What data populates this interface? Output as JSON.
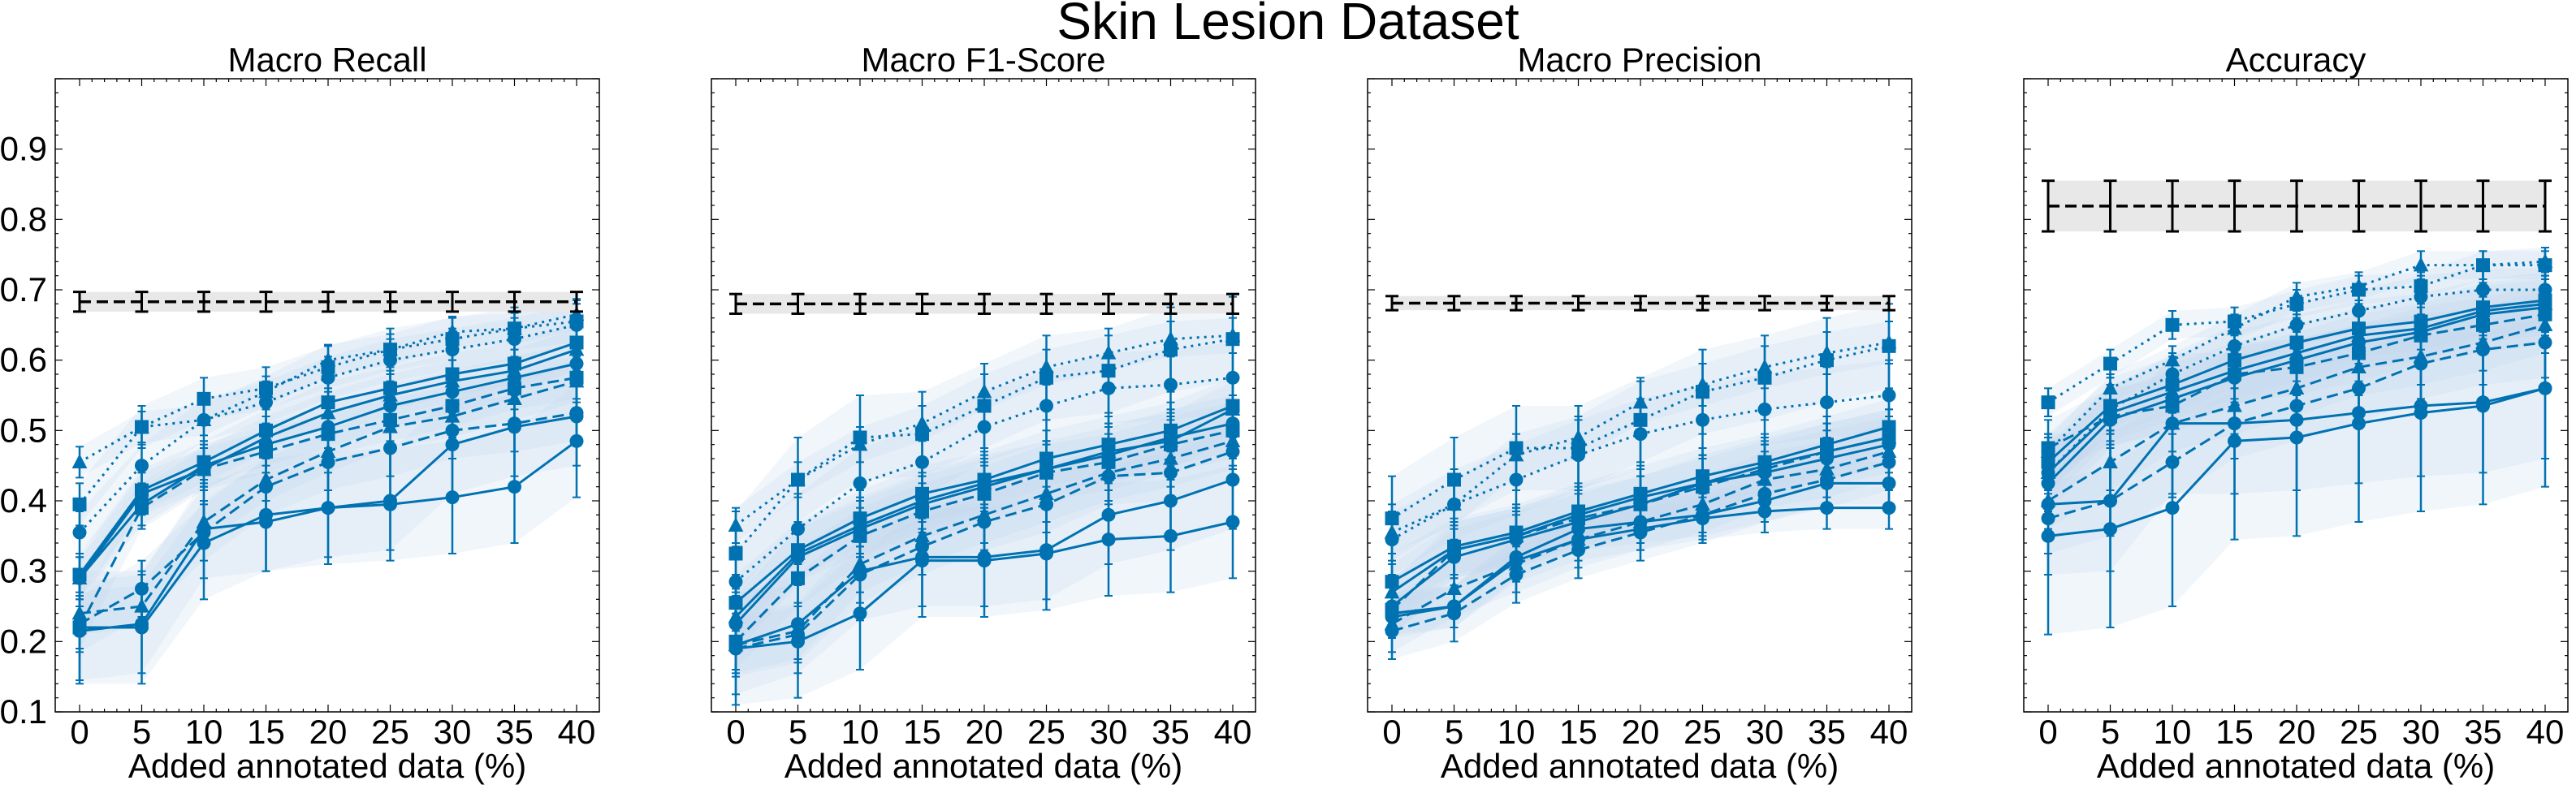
{
  "figure": {
    "title": "Skin Lesion Dataset"
  },
  "colors": {
    "series": "#0072b2",
    "reference": "#000000",
    "band": "#bdd7ee",
    "ref_band": "#e8e8e8"
  },
  "chart_data": [
    {
      "type": "line",
      "title": "Macro Recall",
      "xlabel": "Added annotated data (%)",
      "ylabel": "",
      "x": [
        0,
        5,
        10,
        15,
        20,
        25,
        30,
        35,
        40
      ],
      "ylim": [
        0.1,
        1.0
      ],
      "yticks": [
        "0.1",
        "0.2",
        "0.3",
        "0.4",
        "0.5",
        "0.6",
        "0.7",
        "0.8",
        "0.9"
      ],
      "reference": {
        "values": [
          0.683,
          0.683,
          0.683,
          0.683,
          0.683,
          0.683,
          0.683,
          0.683,
          0.683
        ],
        "err": 0.014,
        "style": "dashed"
      },
      "series": [
        {
          "style": "dotted",
          "marker": "triangle",
          "values": [
            0.455,
            0.505,
            0.515,
            0.555,
            0.6,
            0.615,
            0.64,
            0.645,
            0.665
          ],
          "err": 0.022
        },
        {
          "style": "dotted",
          "marker": "square",
          "values": [
            0.395,
            0.505,
            0.545,
            0.56,
            0.59,
            0.615,
            0.63,
            0.645,
            0.655
          ],
          "err": 0.03
        },
        {
          "style": "dotted",
          "marker": "circle",
          "values": [
            0.355,
            0.45,
            0.515,
            0.54,
            0.575,
            0.6,
            0.615,
            0.63,
            0.65
          ],
          "err": 0.03
        },
        {
          "style": "solid",
          "marker": "square",
          "values": [
            0.295,
            0.415,
            0.455,
            0.5,
            0.54,
            0.56,
            0.58,
            0.595,
            0.625
          ],
          "err": 0.03
        },
        {
          "style": "solid",
          "marker": "triangle",
          "values": [
            0.29,
            0.41,
            0.445,
            0.49,
            0.525,
            0.55,
            0.57,
            0.585,
            0.615
          ],
          "err": 0.03
        },
        {
          "style": "solid",
          "marker": "circle",
          "values": [
            0.29,
            0.395,
            0.45,
            0.48,
            0.505,
            0.535,
            0.555,
            0.575,
            0.595
          ],
          "err": 0.03
        },
        {
          "style": "dashed",
          "marker": "square",
          "values": [
            0.22,
            0.39,
            0.445,
            0.47,
            0.495,
            0.515,
            0.535,
            0.56,
            0.575
          ],
          "err": 0.03
        },
        {
          "style": "dashed",
          "marker": "triangle",
          "values": [
            0.24,
            0.25,
            0.37,
            0.43,
            0.47,
            0.505,
            0.52,
            0.545,
            0.57
          ],
          "err": 0.03
        },
        {
          "style": "dashed",
          "marker": "circle",
          "values": [
            0.225,
            0.275,
            0.355,
            0.42,
            0.455,
            0.475,
            0.5,
            0.51,
            0.525
          ],
          "err": 0.04
        },
        {
          "style": "solid",
          "marker": "circle",
          "values": [
            0.215,
            0.225,
            0.36,
            0.37,
            0.39,
            0.4,
            0.48,
            0.505,
            0.52
          ],
          "err": 0.07
        },
        {
          "style": "solid",
          "marker": "circle",
          "values": [
            0.22,
            0.22,
            0.34,
            0.38,
            0.39,
            0.395,
            0.405,
            0.42,
            0.485
          ],
          "err": 0.08
        }
      ]
    },
    {
      "type": "line",
      "title": "Macro F1-Score",
      "xlabel": "Added annotated data (%)",
      "ylabel": "",
      "x": [
        0,
        5,
        10,
        15,
        20,
        25,
        30,
        35,
        40
      ],
      "ylim": [
        0.1,
        1.0
      ],
      "yticks": [],
      "reference": {
        "values": [
          0.68,
          0.68,
          0.68,
          0.68,
          0.68,
          0.68,
          0.68,
          0.68,
          0.68
        ],
        "err": 0.014,
        "style": "dashed"
      },
      "series": [
        {
          "style": "dotted",
          "marker": "triangle",
          "values": [
            0.365,
            0.43,
            0.48,
            0.51,
            0.555,
            0.59,
            0.61,
            0.63,
            0.635
          ],
          "err": 0.025
        },
        {
          "style": "dotted",
          "marker": "square",
          "values": [
            0.325,
            0.43,
            0.49,
            0.495,
            0.535,
            0.575,
            0.585,
            0.615,
            0.63
          ],
          "err": 0.06
        },
        {
          "style": "dotted",
          "marker": "circle",
          "values": [
            0.285,
            0.36,
            0.425,
            0.455,
            0.505,
            0.535,
            0.56,
            0.565,
            0.575
          ],
          "err": 0.05
        },
        {
          "style": "solid",
          "marker": "square",
          "values": [
            0.255,
            0.33,
            0.375,
            0.41,
            0.43,
            0.46,
            0.48,
            0.5,
            0.535
          ],
          "err": 0.04
        },
        {
          "style": "solid",
          "marker": "triangle",
          "values": [
            0.235,
            0.325,
            0.365,
            0.4,
            0.425,
            0.445,
            0.47,
            0.485,
            0.53
          ],
          "err": 0.04
        },
        {
          "style": "solid",
          "marker": "circle",
          "values": [
            0.225,
            0.32,
            0.36,
            0.395,
            0.42,
            0.445,
            0.465,
            0.49,
            0.51
          ],
          "err": 0.04
        },
        {
          "style": "dashed",
          "marker": "square",
          "values": [
            0.2,
            0.29,
            0.35,
            0.385,
            0.41,
            0.44,
            0.455,
            0.48,
            0.5
          ],
          "err": 0.04
        },
        {
          "style": "dashed",
          "marker": "triangle",
          "values": [
            0.195,
            0.215,
            0.31,
            0.35,
            0.38,
            0.41,
            0.44,
            0.46,
            0.485
          ],
          "err": 0.04
        },
        {
          "style": "dashed",
          "marker": "circle",
          "values": [
            0.19,
            0.21,
            0.295,
            0.335,
            0.37,
            0.395,
            0.435,
            0.44,
            0.47
          ],
          "err": 0.04
        },
        {
          "style": "solid",
          "marker": "circle",
          "values": [
            0.195,
            0.225,
            0.3,
            0.32,
            0.32,
            0.33,
            0.38,
            0.4,
            0.43
          ],
          "err": 0.07
        },
        {
          "style": "solid",
          "marker": "circle",
          "values": [
            0.19,
            0.2,
            0.24,
            0.315,
            0.315,
            0.325,
            0.345,
            0.35,
            0.37
          ],
          "err": 0.08
        }
      ]
    },
    {
      "type": "line",
      "title": "Macro Precision",
      "xlabel": "Added annotated data (%)",
      "ylabel": "",
      "x": [
        0,
        5,
        10,
        15,
        20,
        25,
        30,
        35,
        40
      ],
      "ylim": [
        0.1,
        1.0
      ],
      "yticks": [],
      "reference": {
        "values": [
          0.681,
          0.681,
          0.681,
          0.681,
          0.681,
          0.681,
          0.681,
          0.681,
          0.681
        ],
        "err": 0.01,
        "style": "dashed"
      },
      "series": [
        {
          "style": "dotted",
          "marker": "triangle",
          "values": [
            0.355,
            0.395,
            0.465,
            0.49,
            0.54,
            0.565,
            0.59,
            0.61,
            0.625
          ],
          "err": 0.03
        },
        {
          "style": "dotted",
          "marker": "square",
          "values": [
            0.375,
            0.43,
            0.475,
            0.475,
            0.515,
            0.555,
            0.575,
            0.6,
            0.62
          ],
          "err": 0.06
        },
        {
          "style": "dotted",
          "marker": "circle",
          "values": [
            0.345,
            0.395,
            0.43,
            0.465,
            0.495,
            0.515,
            0.53,
            0.54,
            0.55
          ],
          "err": 0.05
        },
        {
          "style": "solid",
          "marker": "square",
          "values": [
            0.285,
            0.335,
            0.355,
            0.385,
            0.41,
            0.435,
            0.455,
            0.48,
            0.505
          ],
          "err": 0.04
        },
        {
          "style": "solid",
          "marker": "triangle",
          "values": [
            0.27,
            0.33,
            0.35,
            0.38,
            0.405,
            0.425,
            0.45,
            0.47,
            0.49
          ],
          "err": 0.04
        },
        {
          "style": "solid",
          "marker": "circle",
          "values": [
            0.25,
            0.32,
            0.345,
            0.37,
            0.395,
            0.425,
            0.44,
            0.46,
            0.48
          ],
          "err": 0.04
        },
        {
          "style": "dashed",
          "marker": "square",
          "values": [
            0.245,
            0.33,
            0.35,
            0.375,
            0.395,
            0.42,
            0.445,
            0.47,
            0.49
          ],
          "err": 0.04
        },
        {
          "style": "dashed",
          "marker": "triangle",
          "values": [
            0.225,
            0.275,
            0.31,
            0.345,
            0.37,
            0.395,
            0.43,
            0.445,
            0.47
          ],
          "err": 0.04
        },
        {
          "style": "dashed",
          "marker": "circle",
          "values": [
            0.215,
            0.24,
            0.295,
            0.33,
            0.355,
            0.38,
            0.41,
            0.43,
            0.455
          ],
          "err": 0.04
        },
        {
          "style": "solid",
          "marker": "circle",
          "values": [
            0.24,
            0.25,
            0.32,
            0.36,
            0.37,
            0.38,
            0.4,
            0.425,
            0.425
          ],
          "err": 0.03
        },
        {
          "style": "solid",
          "marker": "circle",
          "values": [
            0.235,
            0.25,
            0.315,
            0.345,
            0.36,
            0.375,
            0.385,
            0.39,
            0.39
          ],
          "err": 0.03
        }
      ]
    },
    {
      "type": "line",
      "title": "Accuracy",
      "xlabel": "Added annotated data (%)",
      "ylabel": "",
      "x": [
        0,
        5,
        10,
        15,
        20,
        25,
        30,
        35,
        40
      ],
      "ylim": [
        0.1,
        1.0
      ],
      "yticks": [],
      "reference": {
        "values": [
          0.819,
          0.819,
          0.819,
          0.819,
          0.819,
          0.819,
          0.819,
          0.819,
          0.819
        ],
        "err": 0.036,
        "style": "dashed"
      },
      "series": [
        {
          "style": "dotted",
          "marker": "square",
          "values": [
            0.54,
            0.595,
            0.65,
            0.655,
            0.68,
            0.7,
            0.705,
            0.735,
            0.735
          ],
          "err": 0.02
        },
        {
          "style": "dotted",
          "marker": "triangle",
          "values": [
            0.47,
            0.56,
            0.6,
            0.645,
            0.69,
            0.705,
            0.735,
            0.735,
            0.74
          ],
          "err": 0.02
        },
        {
          "style": "dotted",
          "marker": "circle",
          "values": [
            0.44,
            0.53,
            0.58,
            0.62,
            0.65,
            0.67,
            0.69,
            0.7,
            0.7
          ],
          "err": 0.03
        },
        {
          "style": "solid",
          "marker": "square",
          "values": [
            0.455,
            0.535,
            0.565,
            0.6,
            0.625,
            0.645,
            0.655,
            0.675,
            0.685
          ],
          "err": 0.04
        },
        {
          "style": "solid",
          "marker": "triangle",
          "values": [
            0.44,
            0.525,
            0.555,
            0.585,
            0.61,
            0.635,
            0.645,
            0.67,
            0.68
          ],
          "err": 0.04
        },
        {
          "style": "solid",
          "marker": "circle",
          "values": [
            0.425,
            0.515,
            0.545,
            0.575,
            0.6,
            0.625,
            0.64,
            0.665,
            0.675
          ],
          "err": 0.04
        },
        {
          "style": "dashed",
          "marker": "square",
          "values": [
            0.475,
            0.52,
            0.535,
            0.58,
            0.59,
            0.61,
            0.635,
            0.65,
            0.665
          ],
          "err": 0.04
        },
        {
          "style": "dashed",
          "marker": "triangle",
          "values": [
            0.4,
            0.455,
            0.51,
            0.535,
            0.56,
            0.59,
            0.605,
            0.625,
            0.65
          ],
          "err": 0.04
        },
        {
          "style": "dashed",
          "marker": "circle",
          "values": [
            0.375,
            0.4,
            0.455,
            0.51,
            0.535,
            0.56,
            0.595,
            0.615,
            0.625
          ],
          "err": 0.05
        },
        {
          "style": "solid",
          "marker": "circle",
          "values": [
            0.395,
            0.4,
            0.51,
            0.51,
            0.515,
            0.525,
            0.535,
            0.54,
            0.56
          ],
          "err": 0.1
        },
        {
          "style": "solid",
          "marker": "circle",
          "values": [
            0.35,
            0.36,
            0.39,
            0.485,
            0.49,
            0.51,
            0.525,
            0.535,
            0.56
          ],
          "err": 0.14
        }
      ]
    }
  ]
}
